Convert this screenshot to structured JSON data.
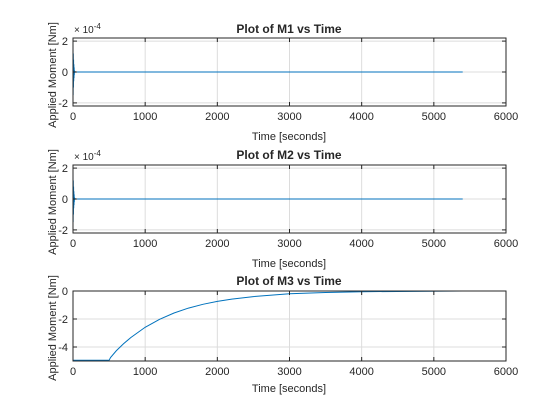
{
  "figure": {
    "background": "#ffffff",
    "axis_color": "#262626",
    "grid_color": "#dcdcdc",
    "line_color": "#0072bd"
  },
  "chart_data": [
    {
      "type": "line",
      "title": "Plot of M1 vs Time",
      "xlabel": "Time [seconds]",
      "ylabel": "Applied Moment [Nm]",
      "xlim": [
        0,
        6000
      ],
      "ylim": [
        -0.00022,
        0.00022
      ],
      "xticks": [
        0,
        1000,
        2000,
        3000,
        4000,
        5000,
        6000
      ],
      "xtick_labels": [
        "0",
        "1000",
        "2000",
        "3000",
        "4000",
        "5000",
        "6000"
      ],
      "yticks": [
        -0.0002,
        0,
        0.0002
      ],
      "ytick_labels": [
        "-2",
        "0",
        "2"
      ],
      "y_exponent": {
        "base": "× 10",
        "power": "-4"
      },
      "grid": true,
      "series": [
        {
          "x": [
            0,
            2,
            4,
            6,
            8,
            10,
            12,
            14,
            16,
            18,
            20,
            25,
            30,
            40,
            60,
            100,
            5400
          ],
          "y": [
            0.0002,
            -0.00015,
            0.00012,
            -0.0001,
            8e-05,
            -6e-05,
            5e-05,
            -4e-05,
            3e-05,
            -2e-05,
            1e-05,
            -5e-06,
            2e-06,
            0,
            0,
            0,
            0
          ]
        }
      ]
    },
    {
      "type": "line",
      "title": "Plot of M2 vs Time",
      "xlabel": "Time [seconds]",
      "ylabel": "Applied Moment [Nm]",
      "xlim": [
        0,
        6000
      ],
      "ylim": [
        -0.00022,
        0.00022
      ],
      "xticks": [
        0,
        1000,
        2000,
        3000,
        4000,
        5000,
        6000
      ],
      "xtick_labels": [
        "0",
        "1000",
        "2000",
        "3000",
        "4000",
        "5000",
        "6000"
      ],
      "yticks": [
        -0.0002,
        0,
        0.0002
      ],
      "ytick_labels": [
        "-2",
        "0",
        "2"
      ],
      "y_exponent": {
        "base": "× 10",
        "power": "-4"
      },
      "grid": true,
      "series": [
        {
          "x": [
            0,
            2,
            4,
            6,
            8,
            10,
            12,
            14,
            16,
            18,
            20,
            25,
            30,
            40,
            60,
            100,
            5400
          ],
          "y": [
            0.0002,
            -0.00015,
            0.00012,
            -0.0001,
            8e-05,
            -6e-05,
            5e-05,
            -4e-05,
            3e-05,
            -2e-05,
            1e-05,
            -5e-06,
            2e-06,
            0,
            0,
            0,
            0
          ]
        }
      ]
    },
    {
      "type": "line",
      "title": "Plot of M3 vs Time",
      "xlabel": "Time [seconds]",
      "ylabel": "Applied Moment [Nm]",
      "xlim": [
        0,
        6000
      ],
      "ylim": [
        -5,
        0
      ],
      "xticks": [
        0,
        1000,
        2000,
        3000,
        4000,
        5000,
        6000
      ],
      "xtick_labels": [
        "0",
        "1000",
        "2000",
        "3000",
        "4000",
        "5000",
        "6000"
      ],
      "yticks": [
        -4,
        -2,
        0
      ],
      "ytick_labels": [
        "-4",
        "-2",
        "0"
      ],
      "grid": true,
      "series": [
        {
          "x": [
            0,
            500,
            520,
            600,
            700,
            800,
            1000,
            1200,
            1400,
            1600,
            1800,
            2000,
            2200,
            2500,
            3000,
            3500,
            4000,
            5400
          ],
          "y": [
            -4.95,
            -4.95,
            -4.75,
            -4.27,
            -3.77,
            -3.33,
            -2.59,
            -2.02,
            -1.57,
            -1.22,
            -0.95,
            -0.74,
            -0.58,
            -0.4,
            -0.2,
            -0.11,
            -0.05,
            0
          ]
        }
      ]
    }
  ]
}
